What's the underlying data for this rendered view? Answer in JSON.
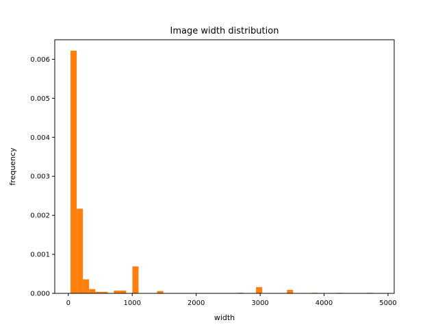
{
  "chart_data": {
    "type": "bar",
    "title": "Image width distribution",
    "xlabel": "width",
    "ylabel": "frequency",
    "xlim": [
      -212,
      5097
    ],
    "ylim": [
      0,
      0.0065
    ],
    "grid": false,
    "bar_color": "#ff7f0e",
    "bin_width": 96.7,
    "bin_start": 35,
    "values": [
      0.00622,
      0.00217,
      0.00036,
      0.00011,
      4e-05,
      4e-05,
      0,
      7e-05,
      7e-05,
      0,
      0.00069,
      0,
      0,
      0,
      6e-05,
      0,
      0,
      0,
      0,
      0,
      0,
      0,
      0,
      0,
      0,
      0,
      0,
      1.5e-05,
      0,
      0,
      0.00016,
      0,
      0,
      0,
      1e-05,
      9e-05,
      0,
      0,
      0,
      1.5e-05,
      0,
      0,
      0,
      1.5e-05,
      0,
      0,
      0,
      0,
      1.5e-05,
      0
    ],
    "xticks": [
      0,
      1000,
      2000,
      3000,
      4000,
      5000
    ],
    "xtick_labels": [
      "0",
      "1000",
      "2000",
      "3000",
      "4000",
      "5000"
    ],
    "yticks": [
      0,
      0.001,
      0.002,
      0.003,
      0.004,
      0.005,
      0.006
    ],
    "ytick_labels": [
      "0.000",
      "0.001",
      "0.002",
      "0.003",
      "0.004",
      "0.005",
      "0.006"
    ]
  }
}
